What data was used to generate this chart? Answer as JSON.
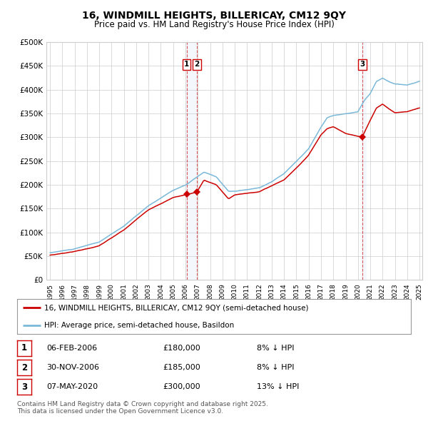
{
  "title": "16, WINDMILL HEIGHTS, BILLERICAY, CM12 9QY",
  "subtitle": "Price paid vs. HM Land Registry's House Price Index (HPI)",
  "ylim": [
    0,
    500000
  ],
  "yticks": [
    0,
    50000,
    100000,
    150000,
    200000,
    250000,
    300000,
    350000,
    400000,
    450000,
    500000
  ],
  "ytick_labels": [
    "£0",
    "£50K",
    "£100K",
    "£150K",
    "£200K",
    "£250K",
    "£300K",
    "£350K",
    "£400K",
    "£450K",
    "£500K"
  ],
  "year_start": 1995,
  "year_end": 2025,
  "hpi_color": "#7ab8d9",
  "price_color": "#cc0000",
  "background_color": "#ffffff",
  "grid_color": "#cccccc",
  "transaction1_date": 2006.09,
  "transaction1_price": 180000,
  "transaction2_date": 2006.92,
  "transaction2_price": 185000,
  "transaction3_date": 2020.35,
  "transaction3_price": 300000,
  "legend_house": "16, WINDMILL HEIGHTS, BILLERICAY, CM12 9QY (semi-detached house)",
  "legend_hpi": "HPI: Average price, semi-detached house, Basildon",
  "table_rows": [
    {
      "num": "1",
      "date": "06-FEB-2006",
      "price": "£180,000",
      "pct": "8% ↓ HPI"
    },
    {
      "num": "2",
      "date": "30-NOV-2006",
      "price": "£185,000",
      "pct": "8% ↓ HPI"
    },
    {
      "num": "3",
      "date": "07-MAY-2020",
      "price": "£300,000",
      "pct": "13% ↓ HPI"
    }
  ],
  "footer": "Contains HM Land Registry data © Crown copyright and database right 2025.\nThis data is licensed under the Open Government Licence v3.0."
}
